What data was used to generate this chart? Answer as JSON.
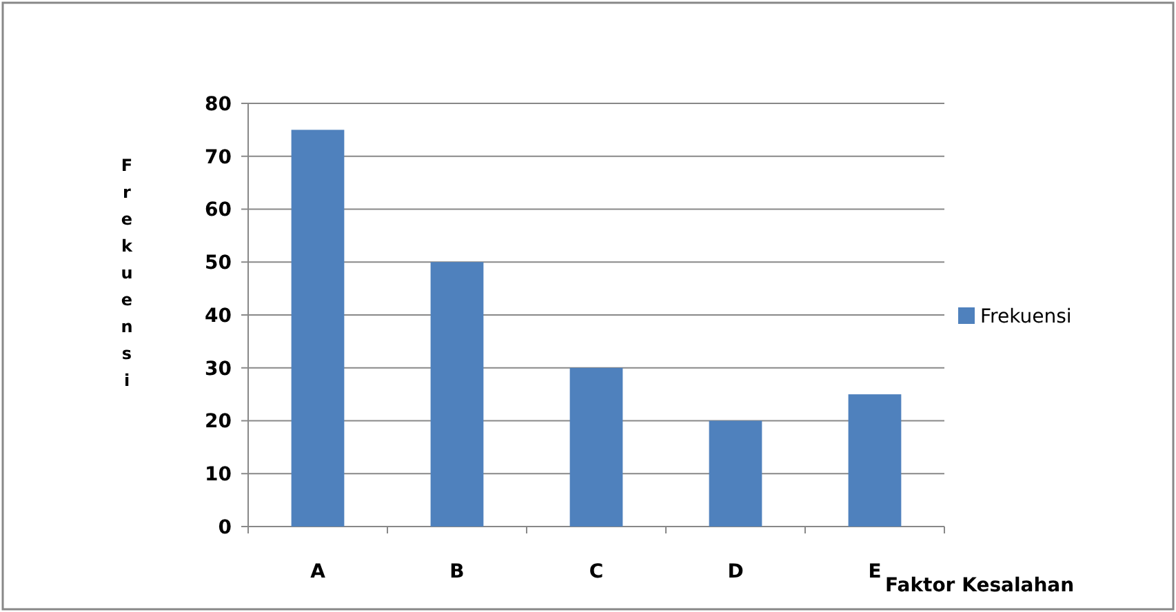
{
  "chart_data": {
    "type": "bar",
    "xlabel": "Faktor Kesalahan",
    "ylabel": "Frekuensi",
    "categories": [
      "A",
      "B",
      "C",
      "D",
      "E"
    ],
    "series": [
      {
        "name": "Frekuensi",
        "color": "#4f81bd",
        "values": [
          75,
          50,
          30,
          20,
          25
        ]
      }
    ],
    "ylim": [
      0,
      80
    ],
    "yticks": [
      0,
      10,
      20,
      30,
      40,
      50,
      60,
      70,
      80
    ],
    "grid": "y",
    "legend": "right"
  }
}
